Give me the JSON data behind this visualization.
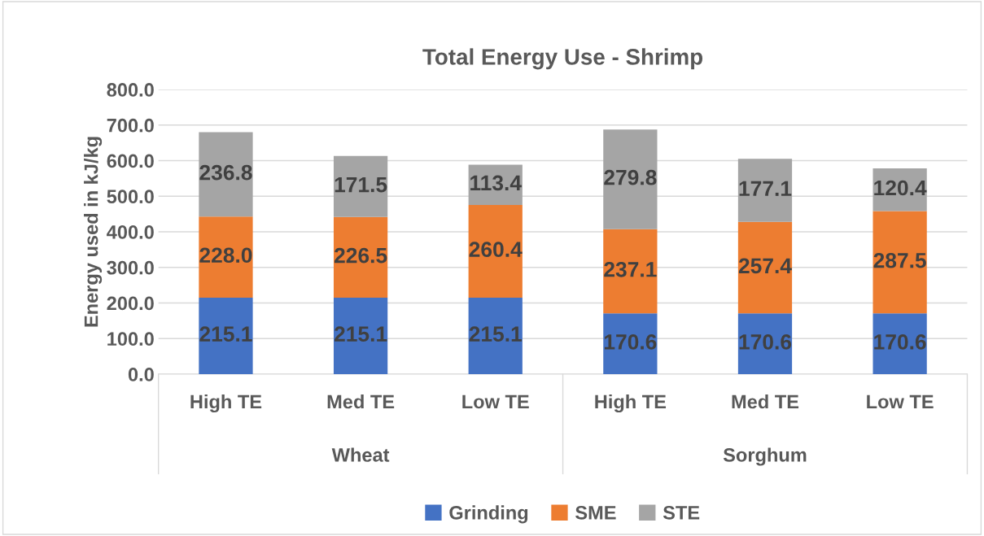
{
  "chart_data": {
    "type": "bar",
    "title": "Total Energy Use - Shrimp",
    "ylabel": "Energy used in kJ/kg",
    "categories": [
      "High TE",
      "Med TE",
      "Low TE",
      "High TE",
      "Med TE",
      "Low TE"
    ],
    "stacked": true,
    "series": [
      {
        "name": "Grinding",
        "color": "#4472c4",
        "values": [
          215.1,
          215.1,
          215.1,
          170.6,
          170.6,
          170.6
        ],
        "value_labels": [
          "215.1",
          "215.1",
          "215.1",
          "170.6",
          "170.6",
          "170.6"
        ]
      },
      {
        "name": "SME",
        "color": "#ed7d31",
        "values": [
          228.0,
          226.5,
          260.4,
          237.1,
          257.4,
          287.5
        ],
        "value_labels": [
          "228.0",
          "226.5",
          "260.4",
          "237.1",
          "257.4",
          "287.5"
        ]
      },
      {
        "name": "STE",
        "color": "#a5a5a5",
        "values": [
          236.8,
          171.5,
          113.4,
          279.8,
          177.1,
          120.4
        ],
        "value_labels": [
          "236.8",
          "171.5",
          "113.4",
          "279.8",
          "177.1",
          "120.4"
        ]
      }
    ],
    "ylim": [
      0,
      800
    ],
    "yticks": [
      {
        "value": 0,
        "label": "0.0"
      },
      {
        "value": 100,
        "label": "100.0"
      },
      {
        "value": 200,
        "label": "200.0"
      },
      {
        "value": 300,
        "label": "300.0"
      },
      {
        "value": 400,
        "label": "400.0"
      },
      {
        "value": 500,
        "label": "500.0"
      },
      {
        "value": 600,
        "label": "600.0"
      },
      {
        "value": 700,
        "label": "700.0"
      },
      {
        "value": 800,
        "label": "800.0"
      }
    ],
    "grid": "y",
    "legend": "bottom",
    "annotations": [
      "Wheat",
      "Sorghum"
    ]
  }
}
